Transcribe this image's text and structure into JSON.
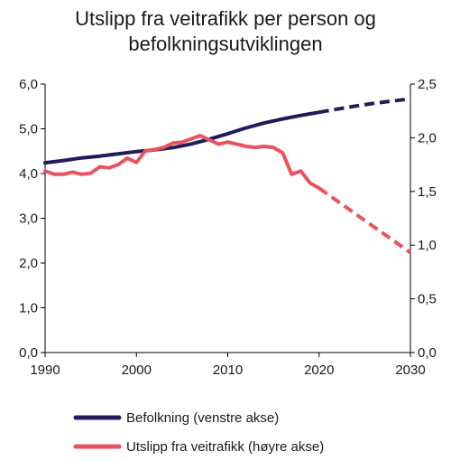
{
  "chart_data": {
    "type": "line",
    "title_lines": [
      "Utslipp fra veitrafikk per person og",
      "befolkningsutviklingen"
    ],
    "x_ticks": [
      "1990",
      "2000",
      "2010",
      "2020",
      "2030"
    ],
    "xlim": [
      1990,
      2030
    ],
    "y_left": {
      "ticks": [
        "0,0",
        "1,0",
        "2,0",
        "3,0",
        "4,0",
        "5,0",
        "6,0"
      ],
      "ylim": [
        0,
        6
      ]
    },
    "y_right": {
      "ticks": [
        "0,0",
        "0,5",
        "1,0",
        "1,5",
        "2,0",
        "2,5"
      ],
      "ylim": [
        0,
        2.5
      ]
    },
    "series": [
      {
        "name": "Befolkning (venstre akse)",
        "axis": "left",
        "color": "#1f1b5c",
        "x": [
          1990,
          1992,
          1994,
          1996,
          1998,
          2000,
          2002,
          2004,
          2006,
          2008,
          2010,
          2012,
          2014,
          2016,
          2018,
          2020
        ],
        "y": [
          4.24,
          4.29,
          4.35,
          4.39,
          4.44,
          4.49,
          4.53,
          4.58,
          4.66,
          4.77,
          4.89,
          5.02,
          5.13,
          5.22,
          5.3,
          5.37
        ],
        "projection_x": [
          2020,
          2022,
          2024,
          2026,
          2028,
          2030
        ],
        "projection_y": [
          5.37,
          5.44,
          5.51,
          5.57,
          5.62,
          5.67
        ]
      },
      {
        "name": "Utslipp fra veitrafikk (høyre akse)",
        "axis": "right",
        "color": "#e8545e",
        "x": [
          1990,
          1991,
          1992,
          1993,
          1994,
          1995,
          1996,
          1997,
          1998,
          1999,
          2000,
          2001,
          2002,
          2003,
          2004,
          2005,
          2006,
          2007,
          2008,
          2009,
          2010,
          2011,
          2012,
          2013,
          2014,
          2015,
          2016,
          2017,
          2018,
          2019,
          2020
        ],
        "y": [
          1.69,
          1.66,
          1.66,
          1.68,
          1.66,
          1.67,
          1.73,
          1.72,
          1.75,
          1.81,
          1.77,
          1.88,
          1.89,
          1.91,
          1.95,
          1.96,
          1.99,
          2.02,
          1.98,
          1.94,
          1.96,
          1.94,
          1.92,
          1.91,
          1.92,
          1.91,
          1.86,
          1.66,
          1.69,
          1.58,
          1.53
        ],
        "projection_x": [
          2020,
          2030
        ],
        "projection_y": [
          1.53,
          0.93
        ]
      }
    ]
  }
}
